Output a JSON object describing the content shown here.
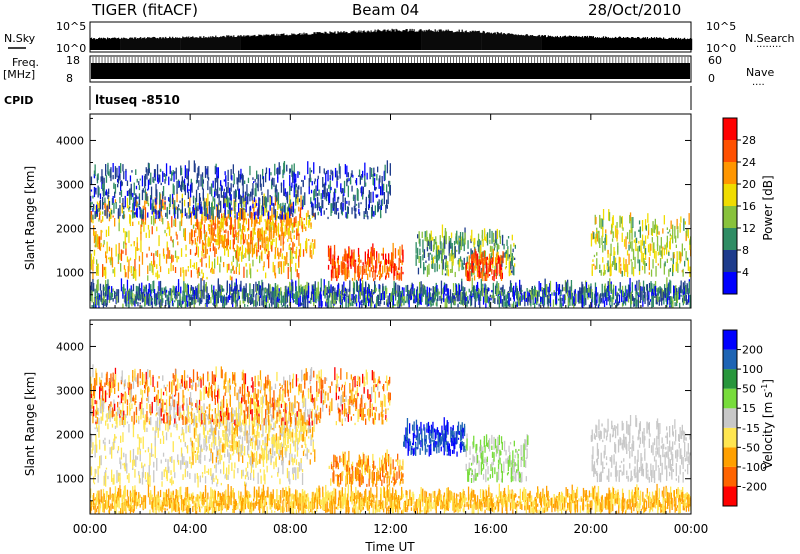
{
  "header": {
    "title": "TIGER (fitACF)",
    "beam": "Beam 04",
    "date": "28/Oct/2010"
  },
  "strip_labels": {
    "nsky": "N.Sky",
    "nsky_ticks": [
      "10^5",
      "10^0"
    ],
    "nsearch": "N.Search",
    "nsearch_ticks": [
      "10^5",
      "10^0"
    ],
    "freq_top": "Freq.",
    "freq_unit": "[MHz]",
    "freq_ticks": [
      "18",
      "8"
    ],
    "nave": "Nave",
    "nave_ticks": [
      "60",
      "0"
    ],
    "cpid": "CPID",
    "cpid_text": "ltuseq -8510"
  },
  "chart_data": [
    {
      "type": "heatmap",
      "name": "power",
      "ylabel": "Slant Range [km]",
      "yticks": [
        1000,
        2000,
        3000,
        4000
      ],
      "ylim": [
        200,
        4600
      ],
      "xlim": [
        0,
        24
      ],
      "colorbar": {
        "label": "Power [dB]",
        "ticks": [
          "4",
          "8",
          "12",
          "16",
          "20",
          "24",
          "28"
        ],
        "colors": [
          "#0000ff",
          "#1e3c8c",
          "#2f8c64",
          "#88c23c",
          "#f0dc00",
          "#ff9600",
          "#ff5000",
          "#ff0000"
        ]
      },
      "clusters": [
        {
          "t": [
            0.0,
            8.5
          ],
          "r": [
            800,
            2600
          ],
          "level": [
            3,
            6
          ]
        },
        {
          "t": [
            4.0,
            9.0
          ],
          "r": [
            1300,
            2300
          ],
          "level": [
            4,
            6
          ]
        },
        {
          "t": [
            9.5,
            12.5
          ],
          "r": [
            800,
            1400
          ],
          "level": [
            5,
            7
          ]
        },
        {
          "t": [
            13.0,
            17.0
          ],
          "r": [
            900,
            1800
          ],
          "level": [
            1,
            4
          ]
        },
        {
          "t": [
            15.0,
            16.5
          ],
          "r": [
            800,
            1300
          ],
          "level": [
            5,
            7
          ]
        },
        {
          "t": [
            20.0,
            24.0
          ],
          "r": [
            900,
            2200
          ],
          "level": [
            2,
            5
          ]
        },
        {
          "t": [
            0.0,
            24.0
          ],
          "r": [
            200,
            600
          ],
          "level": [
            0,
            3
          ]
        },
        {
          "t": [
            0.0,
            12.0
          ],
          "r": [
            2200,
            3300
          ],
          "level": [
            0,
            2
          ]
        }
      ]
    },
    {
      "type": "heatmap",
      "name": "velocity",
      "ylabel": "Slant Range [km]",
      "xlabel": "Time UT",
      "yticks": [
        1000,
        2000,
        3000,
        4000
      ],
      "ylim": [
        200,
        4600
      ],
      "xlim": [
        0,
        24
      ],
      "xticks": [
        "00:00",
        "04:00",
        "08:00",
        "12:00",
        "16:00",
        "20:00",
        "00:00"
      ],
      "colorbar": {
        "label": "Velocity [m s",
        "label_sup": "-1",
        "label_end": "]",
        "ticks": [
          "-200",
          "-100",
          "-50",
          "-15",
          "15",
          "50",
          "100",
          "200"
        ],
        "colors": [
          "#ff0000",
          "#ff6400",
          "#ffa000",
          "#ffe650",
          "#c8c8c8",
          "#78dc3c",
          "#28963c",
          "#1e64b4",
          "#0000ff"
        ]
      },
      "clusters": [
        {
          "t": [
            0.0,
            8.5
          ],
          "r": [
            800,
            2600
          ],
          "level": [
            3,
            4
          ]
        },
        {
          "t": [
            4.0,
            9.0
          ],
          "r": [
            1300,
            2300
          ],
          "level": [
            2,
            4
          ]
        },
        {
          "t": [
            9.5,
            12.5
          ],
          "r": [
            800,
            1400
          ],
          "level": [
            1,
            3
          ]
        },
        {
          "t": [
            12.5,
            15.0
          ],
          "r": [
            1500,
            2100
          ],
          "level": [
            7,
            8
          ]
        },
        {
          "t": [
            15.0,
            17.5
          ],
          "r": [
            900,
            1800
          ],
          "level": [
            4,
            5
          ]
        },
        {
          "t": [
            20.0,
            24.0
          ],
          "r": [
            900,
            2200
          ],
          "level": [
            4,
            4
          ]
        },
        {
          "t": [
            0.0,
            24.0
          ],
          "r": [
            200,
            600
          ],
          "level": [
            2,
            3
          ]
        },
        {
          "t": [
            0.0,
            12.0
          ],
          "r": [
            2200,
            3300
          ],
          "level": [
            0,
            4
          ]
        }
      ]
    }
  ],
  "nsky_envelope": [
    {
      "t": 0.0,
      "v": 0.45
    },
    {
      "t": 4.0,
      "v": 0.5
    },
    {
      "t": 8.0,
      "v": 0.62
    },
    {
      "t": 12.0,
      "v": 0.78
    },
    {
      "t": 15.0,
      "v": 0.75
    },
    {
      "t": 18.0,
      "v": 0.55
    },
    {
      "t": 21.0,
      "v": 0.5
    },
    {
      "t": 24.0,
      "v": 0.45
    }
  ]
}
